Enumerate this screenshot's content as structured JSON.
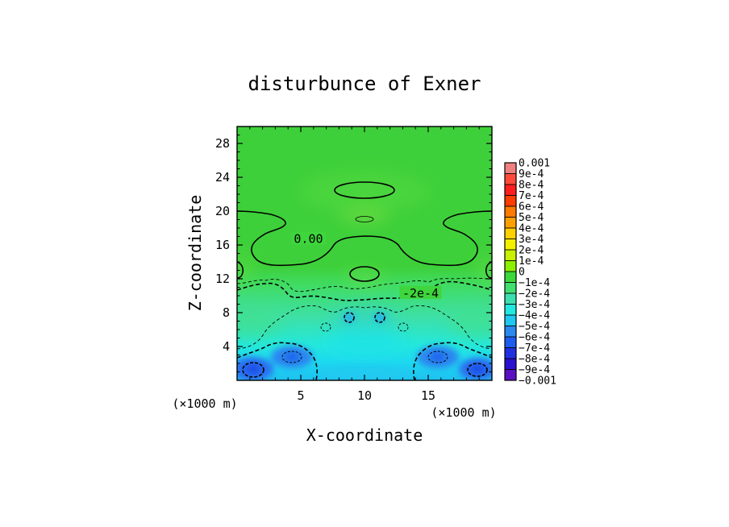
{
  "chart_data": {
    "type": "heatmap",
    "title": "disturbunce of Exner",
    "xlabel": "X-coordinate",
    "ylabel": "Z-coordinate",
    "x_unit": "(×1000 m)",
    "z_unit": "(×1000 m)",
    "xlim": [
      0,
      20
    ],
    "ylim": [
      0,
      30
    ],
    "x_ticks": [
      5,
      10,
      15
    ],
    "y_ticks": [
      4,
      8,
      12,
      16,
      20,
      24,
      28
    ],
    "grid": false,
    "legend_position": "right",
    "colorbar": {
      "min": -0.001,
      "max": 0.001,
      "labels": [
        "0.001",
        "9e-4",
        "8e-4",
        "7e-4",
        "6e-4",
        "5e-4",
        "4e-4",
        "3e-4",
        "2e-4",
        "1e-4",
        "0",
        "−1e-4",
        "−2e-4",
        "−3e-4",
        "−4e-4",
        "−5e-4",
        "−6e-4",
        "−7e-4",
        "−8e-4",
        "−9e-4",
        "−0.001"
      ],
      "colors": [
        "#f08080",
        "#ff4a3a",
        "#ff1f1f",
        "#ff3d00",
        "#ff7a00",
        "#ffa000",
        "#ffd000",
        "#f5f000",
        "#c8f000",
        "#8cf000",
        "#3cd83c",
        "#40e070",
        "#3ce0b0",
        "#22e8e0",
        "#1ec8f0",
        "#2a88f0",
        "#1e5cf0",
        "#2030e0",
        "#2a10d0",
        "#5a10c0"
      ]
    },
    "contour_labels": [
      {
        "text": "0.00",
        "x": 5.6,
        "z": 16.7
      },
      {
        "text": "-2e-4",
        "x": 14.4,
        "z": 10.3
      }
    ]
  }
}
